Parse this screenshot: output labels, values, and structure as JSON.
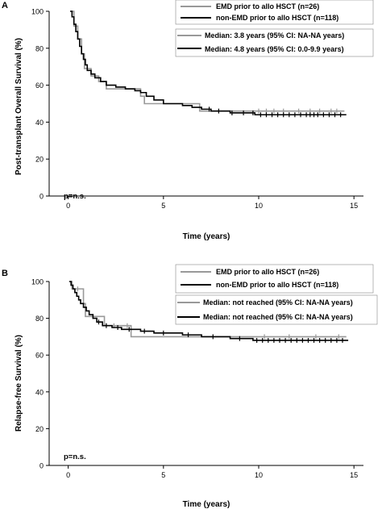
{
  "chart_data": [
    {
      "panel_label": "A",
      "type": "line",
      "step": true,
      "xlabel": "Time (years)",
      "ylabel": "Post-transplant Overall Survival (%)",
      "xlim": [
        -1,
        15.5
      ],
      "ylim": [
        0,
        100
      ],
      "xticks": [
        0,
        5,
        10,
        15
      ],
      "yticks": [
        0,
        20,
        40,
        60,
        80,
        100
      ],
      "pvalue": "p=n.s.",
      "grid": false,
      "legend_position": "top-right",
      "legend": {
        "series_entries": [
          "EMD prior to allo HSCT (n=26)",
          "non-EMD prior to allo HSCT (n=118)"
        ],
        "median_entries": [
          "Median: 3.8 years (95% CI: NA-NA years)",
          "Median: 4.8 years (95% CI: 0.0-9.9 years)"
        ]
      },
      "series": [
        {
          "name": "EMD prior to allo HSCT (n=26)",
          "color": "#999999",
          "points": [
            [
              0.15,
              100
            ],
            [
              0.3,
              92
            ],
            [
              0.5,
              85
            ],
            [
              0.7,
              77
            ],
            [
              0.85,
              69
            ],
            [
              1.2,
              65
            ],
            [
              1.6,
              62
            ],
            [
              2.0,
              58
            ],
            [
              3.8,
              54
            ],
            [
              4.0,
              50
            ],
            [
              6.8,
              50
            ],
            [
              6.9,
              46
            ],
            [
              14.5,
              46
            ]
          ],
          "censor_x": [
            10.0,
            10.4,
            10.8,
            11.3,
            12.1,
            12.7,
            13.2,
            13.8,
            14.1
          ]
        },
        {
          "name": "non-EMD prior to allo HSCT (n=118)",
          "color": "#000000",
          "points": [
            [
              0.1,
              100
            ],
            [
              0.2,
              97
            ],
            [
              0.3,
              93
            ],
            [
              0.4,
              89
            ],
            [
              0.5,
              85
            ],
            [
              0.6,
              81
            ],
            [
              0.7,
              77
            ],
            [
              0.8,
              74
            ],
            [
              0.9,
              71
            ],
            [
              1.0,
              68
            ],
            [
              1.2,
              66
            ],
            [
              1.4,
              64
            ],
            [
              1.7,
              62
            ],
            [
              2.0,
              60
            ],
            [
              2.5,
              59
            ],
            [
              3.0,
              58
            ],
            [
              3.5,
              57
            ],
            [
              3.8,
              56
            ],
            [
              4.1,
              54
            ],
            [
              4.5,
              52
            ],
            [
              5.0,
              50
            ],
            [
              6.0,
              49
            ],
            [
              6.5,
              48
            ],
            [
              7.0,
              47
            ],
            [
              7.5,
              46
            ],
            [
              8.5,
              45
            ],
            [
              9.8,
              44
            ],
            [
              14.6,
              44
            ]
          ],
          "censor_x": [
            7.4,
            7.9,
            8.6,
            9.2,
            9.7,
            10.1,
            10.4,
            10.7,
            11.0,
            11.3,
            11.6,
            11.9,
            12.2,
            12.5,
            12.7,
            12.9,
            13.1,
            13.4,
            13.7,
            14.0,
            14.3
          ]
        }
      ]
    },
    {
      "panel_label": "B",
      "type": "line",
      "step": true,
      "xlabel": "Time (years)",
      "ylabel": "Relapse-free  Survival (%)",
      "xlim": [
        -1,
        15.5
      ],
      "ylim": [
        0,
        100
      ],
      "xticks": [
        0,
        5,
        10,
        15
      ],
      "yticks": [
        0,
        20,
        40,
        60,
        80,
        100
      ],
      "pvalue": "p=n.s.",
      "grid": false,
      "legend_position": "top-right",
      "legend": {
        "series_entries": [
          "EMD prior to allo HSCT (n=26)",
          "non-EMD prior to allo HSCT (n=118)"
        ],
        "median_entries": [
          "Median: not reached (95% CI: NA-NA years)",
          "Median: not reached (95% CI: NA-NA years)"
        ]
      },
      "series": [
        {
          "name": "EMD prior to allo HSCT (n=26)",
          "color": "#999999",
          "points": [
            [
              0.1,
              100
            ],
            [
              0.2,
              96
            ],
            [
              0.8,
              88
            ],
            [
              0.9,
              81
            ],
            [
              1.9,
              76
            ],
            [
              3.3,
              70
            ],
            [
              14.6,
              70
            ]
          ],
          "censor_x": [
            0.5,
            1.3,
            2.4,
            3.1,
            10.3,
            11.6,
            13.0,
            14.2
          ]
        },
        {
          "name": "non-EMD prior to allo HSCT (n=118)",
          "color": "#000000",
          "points": [
            [
              0.05,
              100
            ],
            [
              0.15,
              98
            ],
            [
              0.25,
              96
            ],
            [
              0.35,
              94
            ],
            [
              0.45,
              92
            ],
            [
              0.55,
              90
            ],
            [
              0.65,
              88
            ],
            [
              0.8,
              86
            ],
            [
              0.95,
              84
            ],
            [
              1.1,
              82
            ],
            [
              1.3,
              80
            ],
            [
              1.5,
              78
            ],
            [
              1.8,
              76
            ],
            [
              2.3,
              75
            ],
            [
              2.8,
              74
            ],
            [
              3.8,
              73
            ],
            [
              4.5,
              72
            ],
            [
              6.0,
              71
            ],
            [
              7.0,
              70
            ],
            [
              8.5,
              69
            ],
            [
              9.7,
              68
            ],
            [
              14.7,
              68
            ]
          ],
          "censor_x": [
            1.6,
            2.0,
            2.6,
            3.2,
            4.0,
            5.0,
            6.3,
            7.6,
            9.0,
            9.9,
            10.2,
            10.5,
            10.8,
            11.1,
            11.4,
            11.7,
            12.0,
            12.3,
            12.6,
            12.9,
            13.2,
            13.5,
            13.8,
            14.1,
            14.4
          ]
        }
      ]
    }
  ]
}
